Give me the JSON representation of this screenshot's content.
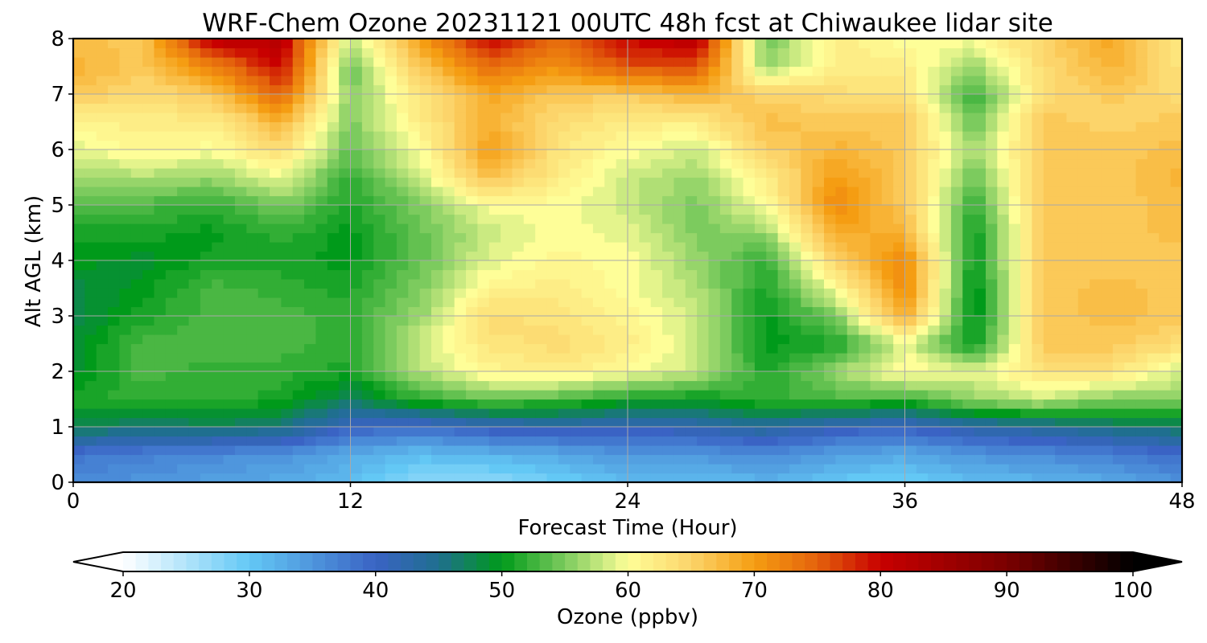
{
  "chart_data": {
    "type": "heatmap",
    "title": "WRF-Chem Ozone  20231121 00UTC 48h fcst at Chiwaukee lidar site",
    "xlabel": "Forecast Time (Hour)",
    "ylabel": "Alt AGL (km)",
    "xlim": [
      0,
      48
    ],
    "ylim": [
      0,
      8
    ],
    "xticks": [
      "0",
      "12",
      "24",
      "36",
      "48"
    ],
    "yticks": [
      "0",
      "1",
      "2",
      "3",
      "4",
      "5",
      "6",
      "7",
      "8"
    ],
    "grid": true,
    "x_hours": [
      0,
      3,
      6,
      9,
      12,
      15,
      18,
      21,
      24,
      27,
      30,
      33,
      36,
      39,
      42,
      45,
      48
    ],
    "y_km": [
      0,
      0.5,
      1,
      1.5,
      2,
      2.5,
      3,
      3.5,
      4,
      4.5,
      5,
      5.5,
      6,
      6.5,
      7,
      7.5,
      8
    ],
    "ozone_ppbv": [
      [
        36,
        35,
        34,
        33,
        31,
        27,
        27,
        29,
        31,
        31,
        32,
        30,
        29,
        31,
        32,
        33,
        35
      ],
      [
        38,
        37,
        36,
        35,
        33,
        31,
        32,
        33,
        35,
        35,
        36,
        34,
        33,
        35,
        36,
        37,
        39
      ],
      [
        48,
        46,
        47,
        46,
        40,
        39,
        41,
        42,
        41,
        42,
        44,
        41,
        40,
        43,
        44,
        46,
        47
      ],
      [
        51,
        52,
        52,
        51,
        47,
        52,
        54,
        53,
        51,
        50,
        52,
        53,
        52,
        56,
        58,
        55,
        56
      ],
      [
        49,
        53,
        52,
        52,
        51,
        57,
        61,
        62,
        60,
        58,
        51,
        56,
        61,
        59,
        63,
        63,
        58
      ],
      [
        49,
        53,
        53,
        53,
        52,
        58,
        63,
        64,
        62,
        58,
        50,
        51,
        59,
        50,
        66,
        66,
        64
      ],
      [
        48,
        51,
        53,
        53,
        52,
        56,
        64,
        63,
        61,
        58,
        50,
        55,
        69,
        49,
        66,
        67,
        66
      ],
      [
        48,
        50,
        53,
        52,
        51,
        55,
        61,
        62,
        60,
        57,
        51,
        60,
        72,
        49,
        66,
        67,
        66
      ],
      [
        50,
        49,
        51,
        51,
        50,
        54,
        59,
        61,
        60,
        56,
        52,
        65,
        72,
        50,
        66,
        66,
        66
      ],
      [
        51,
        51,
        50,
        52,
        50,
        54,
        58,
        60,
        59,
        55,
        56,
        69,
        68,
        50,
        66,
        66,
        67
      ],
      [
        54,
        53,
        52,
        55,
        51,
        55,
        60,
        60,
        58,
        55,
        60,
        72,
        66,
        52,
        66,
        66,
        67
      ],
      [
        56,
        57,
        56,
        59,
        52,
        58,
        67,
        62,
        58,
        56,
        62,
        70,
        66,
        54,
        66,
        66,
        68
      ],
      [
        59,
        61,
        60,
        64,
        54,
        60,
        70,
        63,
        60,
        58,
        65,
        68,
        66,
        56,
        66,
        66,
        67
      ],
      [
        61,
        62,
        62,
        68,
        55,
        62,
        68,
        64,
        62,
        62,
        67,
        66,
        66,
        54,
        66,
        65,
        66
      ],
      [
        66,
        64,
        66,
        75,
        55,
        63,
        69,
        66,
        66,
        68,
        65,
        64,
        63,
        52,
        64,
        66,
        64
      ],
      [
        68,
        66,
        72,
        80,
        54,
        66,
        74,
        71,
        76,
        76,
        56,
        62,
        62,
        56,
        64,
        68,
        63
      ],
      [
        67,
        66,
        82,
        82,
        57,
        70,
        80,
        74,
        80,
        82,
        54,
        62,
        60,
        60,
        65,
        69,
        62
      ]
    ],
    "colorbar": {
      "label": "Ozone  (ppbv)",
      "min": 20,
      "max": 100,
      "ticks": [
        "20",
        "30",
        "40",
        "50",
        "60",
        "70",
        "80",
        "90",
        "100"
      ],
      "extend": "both"
    },
    "colormap_stops": [
      {
        "v": 20,
        "c": "#ffffff"
      },
      {
        "v": 30,
        "c": "#63c8f5"
      },
      {
        "v": 40,
        "c": "#3a63c4"
      },
      {
        "v": 45,
        "c": "#1f6f8f"
      },
      {
        "v": 50,
        "c": "#009a1a"
      },
      {
        "v": 55,
        "c": "#7ccb5e"
      },
      {
        "v": 60,
        "c": "#fefe98"
      },
      {
        "v": 65,
        "c": "#fcd46a"
      },
      {
        "v": 70,
        "c": "#f59d12"
      },
      {
        "v": 75,
        "c": "#e4620c"
      },
      {
        "v": 80,
        "c": "#c80000"
      },
      {
        "v": 90,
        "c": "#7a0000"
      },
      {
        "v": 100,
        "c": "#000000"
      }
    ]
  }
}
